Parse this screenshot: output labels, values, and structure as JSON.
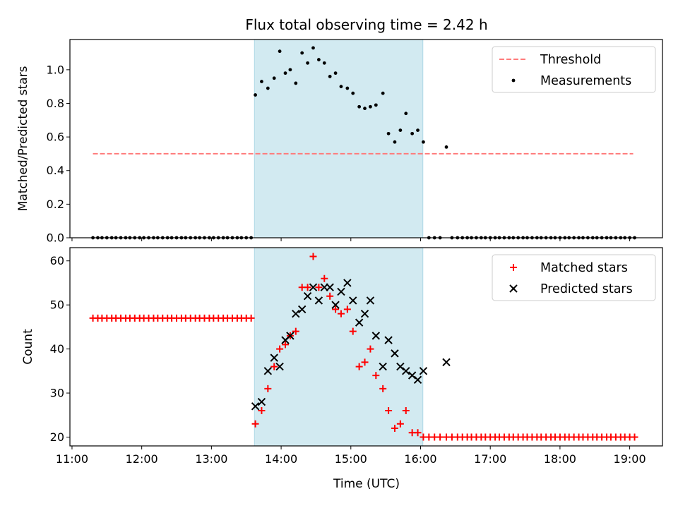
{
  "chart_data": {
    "title": "Flux total observing time = 2.42 h",
    "xlabel": "Time (UTC)",
    "x_ticks": [
      "11:00",
      "12:00",
      "13:00",
      "14:00",
      "15:00",
      "16:00",
      "17:00",
      "18:00",
      "19:00"
    ],
    "x_tick_hours": [
      11,
      12,
      13,
      14,
      15,
      16,
      17,
      18,
      19
    ],
    "xlim_hours": [
      10.97,
      19.47
    ],
    "observing_window_hours": [
      13.617,
      16.033
    ],
    "observing_window_color": "#add8e6",
    "charts": [
      {
        "type": "scatter",
        "ylabel": "Matched/Predicted stars",
        "ylim": [
          0,
          1.18
        ],
        "y_ticks": [
          "0.0",
          "0.2",
          "0.4",
          "0.6",
          "0.8",
          "1.0"
        ],
        "y_tick_values": [
          0,
          0.2,
          0.4,
          0.6,
          0.8,
          1.0
        ],
        "legend_position": "top-right",
        "threshold": {
          "name": "Threshold",
          "value": 0.5,
          "x_range_hours": [
            11.3,
            19.05
          ],
          "color": "#ff7b7b"
        },
        "series": [
          {
            "name": "Measurements",
            "marker": "dot",
            "color": "#000000",
            "x_hours": [
              11.3,
              11.37,
              11.43,
              11.5,
              11.57,
              11.63,
              11.7,
              11.77,
              11.83,
              11.9,
              11.97,
              12.03,
              12.1,
              12.17,
              12.23,
              12.3,
              12.37,
              12.43,
              12.5,
              12.57,
              12.63,
              12.7,
              12.77,
              12.83,
              12.9,
              12.97,
              13.03,
              13.1,
              13.17,
              13.23,
              13.3,
              13.37,
              13.43,
              13.5,
              13.57,
              13.63,
              13.72,
              13.81,
              13.9,
              13.98,
              14.06,
              14.13,
              14.21,
              14.3,
              14.38,
              14.46,
              14.54,
              14.62,
              14.7,
              14.78,
              14.86,
              14.95,
              15.03,
              15.12,
              15.2,
              15.28,
              15.36,
              15.46,
              15.54,
              15.63,
              15.71,
              15.79,
              15.88,
              15.96,
              16.04,
              16.12,
              16.2,
              16.28,
              16.37,
              16.45,
              16.53,
              16.6,
              16.67,
              16.73,
              16.8,
              16.87,
              16.93,
              17.0,
              17.07,
              17.13,
              17.2,
              17.27,
              17.33,
              17.4,
              17.47,
              17.53,
              17.6,
              17.67,
              17.73,
              17.8,
              17.87,
              17.93,
              18.0,
              18.07,
              18.13,
              18.2,
              18.27,
              18.33,
              18.4,
              18.47,
              18.53,
              18.6,
              18.67,
              18.73,
              18.8,
              18.87,
              18.93,
              19.0,
              19.07
            ],
            "y": [
              0,
              0,
              0,
              0,
              0,
              0,
              0,
              0,
              0,
              0,
              0,
              0,
              0,
              0,
              0,
              0,
              0,
              0,
              0,
              0,
              0,
              0,
              0,
              0,
              0,
              0,
              0,
              0,
              0,
              0,
              0,
              0,
              0,
              0,
              0,
              0.85,
              0.93,
              0.89,
              0.95,
              1.11,
              0.98,
              1.0,
              0.92,
              1.1,
              1.04,
              1.13,
              1.06,
              1.04,
              0.96,
              0.98,
              0.9,
              0.89,
              0.86,
              0.78,
              0.77,
              0.78,
              0.79,
              0.86,
              0.62,
              0.57,
              0.64,
              0.74,
              0.62,
              0.64,
              0.57,
              0,
              0,
              0,
              0.54,
              0,
              0,
              0,
              0,
              0,
              0,
              0,
              0,
              0,
              0,
              0,
              0,
              0,
              0,
              0,
              0,
              0,
              0,
              0,
              0,
              0,
              0,
              0,
              0,
              0,
              0,
              0,
              0,
              0,
              0,
              0,
              0,
              0,
              0,
              0,
              0,
              0,
              0,
              0,
              0
            ]
          }
        ]
      },
      {
        "type": "scatter",
        "ylabel": "Count",
        "ylim": [
          18,
          63
        ],
        "y_ticks": [
          "20",
          "30",
          "40",
          "50",
          "60"
        ],
        "y_tick_values": [
          20,
          30,
          40,
          50,
          60
        ],
        "legend_position": "top-right",
        "series": [
          {
            "name": "Matched stars",
            "marker": "plus",
            "color": "#ff0000",
            "x_hours": [
              11.3,
              11.37,
              11.43,
              11.5,
              11.57,
              11.63,
              11.7,
              11.77,
              11.83,
              11.9,
              11.97,
              12.03,
              12.1,
              12.17,
              12.23,
              12.3,
              12.37,
              12.43,
              12.5,
              12.57,
              12.63,
              12.7,
              12.77,
              12.83,
              12.9,
              12.97,
              13.03,
              13.1,
              13.17,
              13.23,
              13.3,
              13.37,
              13.43,
              13.5,
              13.57,
              13.63,
              13.72,
              13.81,
              13.9,
              13.98,
              14.06,
              14.13,
              14.21,
              14.3,
              14.38,
              14.46,
              14.54,
              14.62,
              14.7,
              14.78,
              14.86,
              14.95,
              15.03,
              15.12,
              15.2,
              15.28,
              15.36,
              15.46,
              15.54,
              15.63,
              15.71,
              15.79,
              15.88,
              15.96,
              16.04,
              16.12,
              16.2,
              16.28,
              16.37,
              16.45,
              16.53,
              16.6,
              16.67,
              16.73,
              16.8,
              16.87,
              16.93,
              17.0,
              17.07,
              17.13,
              17.2,
              17.27,
              17.33,
              17.4,
              17.47,
              17.53,
              17.6,
              17.67,
              17.73,
              17.8,
              17.87,
              17.93,
              18.0,
              18.07,
              18.13,
              18.2,
              18.27,
              18.33,
              18.4,
              18.47,
              18.53,
              18.6,
              18.67,
              18.73,
              18.8,
              18.87,
              18.93,
              19.0,
              19.07
            ],
            "y": [
              47,
              47,
              47,
              47,
              47,
              47,
              47,
              47,
              47,
              47,
              47,
              47,
              47,
              47,
              47,
              47,
              47,
              47,
              47,
              47,
              47,
              47,
              47,
              47,
              47,
              47,
              47,
              47,
              47,
              47,
              47,
              47,
              47,
              47,
              47,
              23,
              26,
              31,
              36,
              40,
              41,
              43,
              44,
              54,
              54,
              61,
              54,
              56,
              52,
              49,
              48,
              49,
              44,
              36,
              37,
              40,
              34,
              31,
              26,
              22,
              23,
              26,
              21,
              21,
              20,
              20,
              20,
              20,
              20,
              20,
              20,
              20,
              20,
              20,
              20,
              20,
              20,
              20,
              20,
              20,
              20,
              20,
              20,
              20,
              20,
              20,
              20,
              20,
              20,
              20,
              20,
              20,
              20,
              20,
              20,
              20,
              20,
              20,
              20,
              20,
              20,
              20,
              20,
              20,
              20,
              20,
              20,
              20,
              20
            ]
          },
          {
            "name": "Predicted stars",
            "marker": "cross",
            "color": "#000000",
            "x_hours": [
              13.63,
              13.72,
              13.81,
              13.9,
              13.98,
              14.06,
              14.13,
              14.21,
              14.3,
              14.38,
              14.46,
              14.54,
              14.62,
              14.7,
              14.78,
              14.86,
              14.95,
              15.03,
              15.12,
              15.2,
              15.28,
              15.36,
              15.46,
              15.54,
              15.63,
              15.71,
              15.79,
              15.88,
              15.96,
              16.04,
              16.37
            ],
            "y": [
              27,
              28,
              35,
              38,
              36,
              42,
              43,
              48,
              49,
              52,
              54,
              51,
              54,
              54,
              50,
              53,
              55,
              51,
              46,
              48,
              51,
              43,
              36,
              42,
              39,
              36,
              35,
              34,
              33,
              35,
              37
            ]
          }
        ]
      }
    ]
  }
}
